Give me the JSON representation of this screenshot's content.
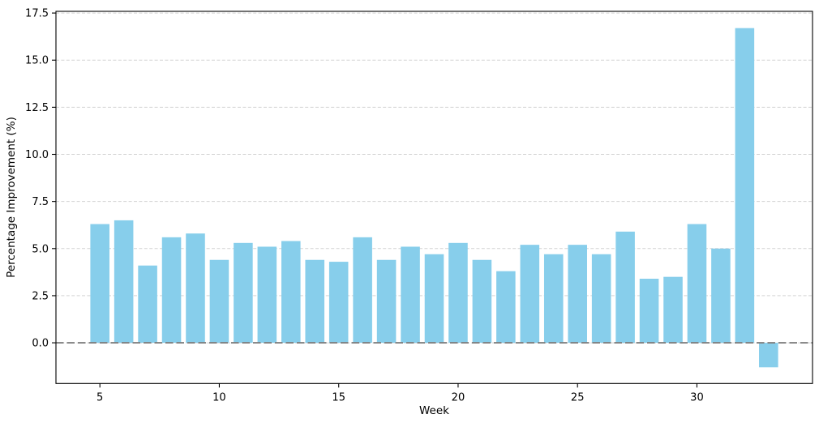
{
  "chart_data": {
    "type": "bar",
    "title": "",
    "xlabel": "Week",
    "ylabel": "Percentage Improvement (%)",
    "x": [
      5,
      6,
      7,
      8,
      9,
      10,
      11,
      12,
      13,
      14,
      15,
      16,
      17,
      18,
      19,
      20,
      21,
      22,
      23,
      24,
      25,
      26,
      27,
      28,
      29,
      30,
      31,
      32,
      33
    ],
    "values": [
      6.3,
      6.5,
      4.1,
      5.6,
      5.8,
      4.4,
      5.3,
      5.1,
      5.4,
      4.4,
      4.3,
      5.6,
      4.4,
      5.1,
      4.7,
      5.3,
      4.4,
      3.8,
      5.2,
      4.7,
      5.2,
      4.7,
      5.9,
      3.4,
      3.5,
      6.3,
      5.0,
      16.7,
      -1.3
    ],
    "bar_color": "#87CEEB",
    "bar_width_units": 0.8,
    "xlim": [
      3.16,
      34.84
    ],
    "ylim": [
      -2.16,
      17.59
    ],
    "xticks": [
      5,
      10,
      15,
      20,
      25,
      30
    ],
    "yticks": [
      0.0,
      2.5,
      5.0,
      7.5,
      10.0,
      12.5,
      15.0,
      17.5
    ],
    "ytick_decimals": 1,
    "grid": {
      "axis": "y",
      "linestyle": "dashed",
      "color": "#d3d3d3"
    },
    "zero_line": {
      "value": 0.0,
      "linestyle": "dashed",
      "color": "#7f7f7f"
    },
    "legend": "none",
    "spine_color": "#000000",
    "tick_color": "#000000",
    "background": "#ffffff"
  }
}
